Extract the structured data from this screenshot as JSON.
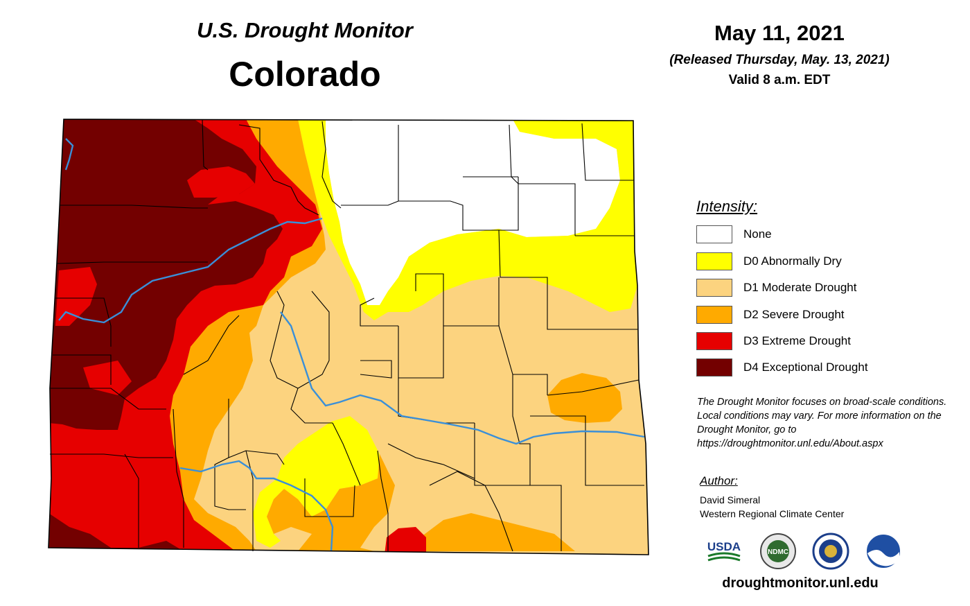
{
  "header": {
    "title": "U.S. Drought Monitor",
    "state": "Colorado",
    "date": "May 11, 2021",
    "released": "(Released Thursday, May. 13, 2021)",
    "valid": "Valid 8 a.m. EDT"
  },
  "legend": {
    "title": "Intensity:",
    "items": [
      {
        "label": "None",
        "color": "#ffffff"
      },
      {
        "label": "D0 Abnormally Dry",
        "color": "#ffff00"
      },
      {
        "label": "D1 Moderate Drought",
        "color": "#fcd37f"
      },
      {
        "label": "D2 Severe Drought",
        "color": "#ffaa00"
      },
      {
        "label": "D3 Extreme Drought",
        "color": "#e60000"
      },
      {
        "label": "D4 Exceptional Drought",
        "color": "#730000"
      }
    ]
  },
  "disclaimer": "The Drought Monitor focuses on broad-scale conditions. Local conditions may vary. For more information on the Drought Monitor, go to https://droughtmonitor.unl.edu/About.aspx",
  "author": {
    "label": "Author:",
    "name": "David Simeral",
    "org": "Western Regional Climate Center"
  },
  "logos": [
    {
      "text": "USDA",
      "icon": "usda-logo"
    },
    {
      "text": "NDMC",
      "icon": "ndmc-logo"
    },
    {
      "text": "",
      "icon": "doc-seal-logo"
    },
    {
      "text": "",
      "icon": "noaa-logo"
    }
  ],
  "footer_url": "droughtmonitor.unl.edu",
  "colors": {
    "river": "#3a8fd8",
    "county_border": "#000000"
  }
}
